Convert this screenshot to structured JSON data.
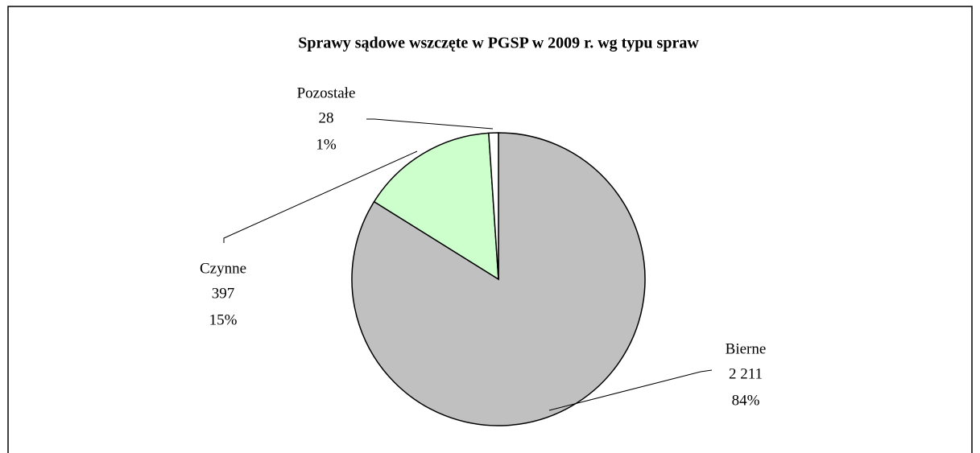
{
  "chart_data": {
    "type": "pie",
    "title": "Sprawy sądowe wszczęte w PGSP w 2009 r. wg typu spraw",
    "categories": [
      "Bierne",
      "Czynne",
      "Pozostałe"
    ],
    "values": [
      2211,
      397,
      28
    ],
    "value_labels": [
      "2 211",
      "397",
      "28"
    ],
    "percent_labels": [
      "84%",
      "15%",
      "1%"
    ],
    "colors": [
      "#c0c0c0",
      "#ccffcc",
      "#ffffff"
    ]
  }
}
